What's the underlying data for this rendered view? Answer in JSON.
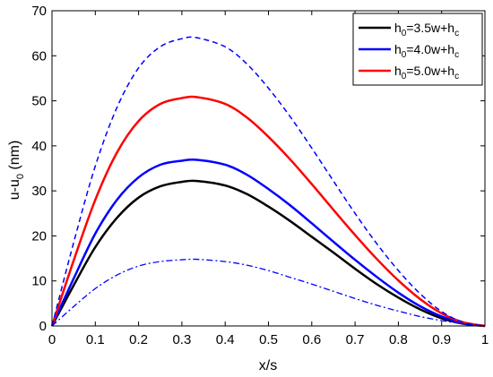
{
  "chart_data": {
    "type": "line",
    "title": "",
    "xlabel": "x/s",
    "ylabel": {
      "base": "u-u",
      "sub": "0",
      "tail": " (nm)"
    },
    "xlim": [
      0,
      1
    ],
    "ylim": [
      0,
      70
    ],
    "x_ticks": [
      "0",
      "0.1",
      "0.2",
      "0.3",
      "0.4",
      "0.5",
      "0.6",
      "0.7",
      "0.8",
      "0.9",
      "1"
    ],
    "y_ticks": [
      "0",
      "10",
      "20",
      "30",
      "40",
      "50",
      "60",
      "70"
    ],
    "grid": false,
    "legend_position": "top-right",
    "series": [
      {
        "name": {
          "parts": [
            "h",
            "0",
            "=3.5w+h",
            "c"
          ]
        },
        "color": "#000000",
        "style": "solid",
        "width": 2.5,
        "x": [
          0,
          0.05,
          0.1,
          0.15,
          0.2,
          0.25,
          0.3,
          0.335,
          0.4,
          0.45,
          0.5,
          0.55,
          0.6,
          0.65,
          0.7,
          0.75,
          0.8,
          0.85,
          0.9,
          0.95,
          1.0
        ],
        "y": [
          0,
          9.0,
          17.5,
          24.0,
          28.5,
          31.0,
          32.0,
          32.2,
          31.2,
          29.3,
          26.5,
          23.3,
          19.8,
          16.3,
          12.7,
          9.3,
          6.3,
          3.7,
          1.7,
          0.5,
          0
        ]
      },
      {
        "name": {
          "parts": [
            "h",
            "0",
            "=4.0w+h",
            "c"
          ]
        },
        "color": "#0000ff",
        "style": "solid",
        "width": 2.5,
        "x": [
          0,
          0.05,
          0.1,
          0.15,
          0.2,
          0.25,
          0.3,
          0.335,
          0.4,
          0.45,
          0.5,
          0.55,
          0.6,
          0.65,
          0.7,
          0.75,
          0.8,
          0.85,
          0.9,
          0.95,
          1.0
        ],
        "y": [
          0,
          10.5,
          20.5,
          28.0,
          33.0,
          35.8,
          36.7,
          36.9,
          35.8,
          33.6,
          30.4,
          26.8,
          22.8,
          18.7,
          14.7,
          10.9,
          7.4,
          4.4,
          2.1,
          0.6,
          0
        ]
      },
      {
        "name": {
          "parts": [
            "h",
            "0",
            "=5.0w+h",
            "c"
          ]
        },
        "color": "#ff0000",
        "style": "solid",
        "width": 2.5,
        "x": [
          0,
          0.05,
          0.1,
          0.15,
          0.2,
          0.25,
          0.3,
          0.335,
          0.4,
          0.45,
          0.5,
          0.55,
          0.6,
          0.65,
          0.7,
          0.75,
          0.8,
          0.85,
          0.9,
          0.95,
          1.0
        ],
        "y": [
          0,
          14.5,
          28.0,
          38.5,
          45.5,
          49.3,
          50.6,
          50.8,
          49.3,
          46.3,
          42.0,
          37.0,
          31.5,
          25.8,
          20.2,
          14.9,
          10.1,
          6.0,
          2.8,
          0.8,
          0
        ]
      },
      {
        "name": null,
        "color": "#0000ff",
        "style": "dashed",
        "width": 1.5,
        "x": [
          0,
          0.05,
          0.1,
          0.15,
          0.2,
          0.25,
          0.3,
          0.335,
          0.4,
          0.45,
          0.5,
          0.55,
          0.6,
          0.65,
          0.7,
          0.75,
          0.8,
          0.85,
          0.9,
          0.95,
          1.0
        ],
        "y": [
          0,
          18.5,
          35.5,
          48.5,
          57.3,
          62.0,
          63.8,
          64.0,
          62.0,
          58.2,
          52.8,
          46.5,
          39.5,
          32.2,
          25.0,
          18.3,
          12.3,
          7.2,
          3.2,
          0.8,
          0
        ]
      },
      {
        "name": null,
        "color": "#0000ff",
        "style": "dashdot",
        "width": 1.3,
        "x": [
          0,
          0.05,
          0.1,
          0.15,
          0.2,
          0.25,
          0.3,
          0.335,
          0.4,
          0.45,
          0.5,
          0.55,
          0.6,
          0.65,
          0.7,
          0.75,
          0.8,
          0.85,
          0.9,
          0.95,
          1.0
        ],
        "y": [
          0,
          4.3,
          8.3,
          11.3,
          13.3,
          14.3,
          14.7,
          14.8,
          14.3,
          13.5,
          12.3,
          10.8,
          9.3,
          7.7,
          6.1,
          4.6,
          3.3,
          2.1,
          1.2,
          0.5,
          0
        ]
      }
    ]
  }
}
